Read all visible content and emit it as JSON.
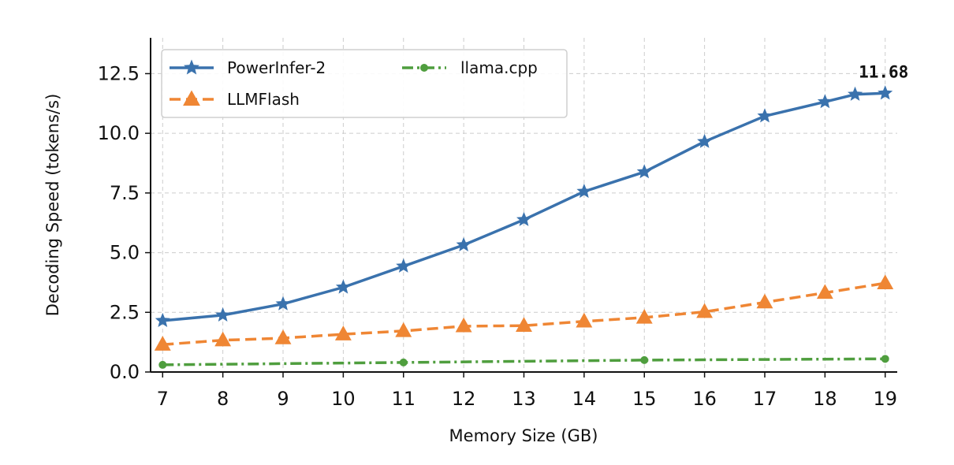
{
  "chart_data": {
    "type": "line",
    "title": "",
    "xlabel": "Memory Size (GB)",
    "ylabel": "Decoding Speed (tokens/s)",
    "xlim": [
      6.8,
      19.2
    ],
    "ylim": [
      0,
      14
    ],
    "x_ticks": [
      7,
      8,
      9,
      10,
      11,
      12,
      13,
      14,
      15,
      16,
      17,
      18,
      19
    ],
    "y_ticks": [
      0,
      2.5,
      5,
      7.5,
      10,
      12.5
    ],
    "x_tick_labels": [
      "7",
      "8",
      "9",
      "10",
      "11",
      "12",
      "13",
      "14",
      "15",
      "16",
      "17",
      "18",
      "19"
    ],
    "y_tick_labels": [
      "0.0",
      "2.5",
      "5.0",
      "7.5",
      "10.0",
      "12.5"
    ],
    "grid": true,
    "legend_position": "top-left",
    "series": [
      {
        "name": "PowerInfer-2",
        "color": "#3a72ad",
        "marker": "star",
        "linestyle": "solid",
        "x": [
          7,
          8,
          9,
          10,
          11,
          12,
          13,
          14,
          15,
          16,
          17,
          18,
          18.5,
          19
        ],
        "y": [
          2.15,
          2.38,
          2.85,
          3.55,
          4.43,
          5.32,
          6.38,
          7.56,
          8.38,
          9.65,
          10.72,
          11.32,
          11.63,
          11.68
        ]
      },
      {
        "name": "LLMFlash",
        "color": "#ef8634",
        "marker": "triangle",
        "linestyle": "dashed",
        "x": [
          7,
          8,
          9,
          10,
          11,
          12,
          13,
          14,
          15,
          16,
          17,
          18,
          19
        ],
        "y": [
          1.15,
          1.33,
          1.42,
          1.58,
          1.72,
          1.92,
          1.94,
          2.12,
          2.28,
          2.52,
          2.92,
          3.32,
          3.72
        ]
      },
      {
        "name": "llama.cpp",
        "color": "#4f9e3e",
        "marker": "circle",
        "linestyle": "dashdot",
        "x": [
          7,
          11,
          15,
          19
        ],
        "y": [
          0.3,
          0.4,
          0.5,
          0.55
        ]
      }
    ],
    "annotations": [
      {
        "text": "11.68",
        "x": 19,
        "y": 11.68
      }
    ]
  }
}
